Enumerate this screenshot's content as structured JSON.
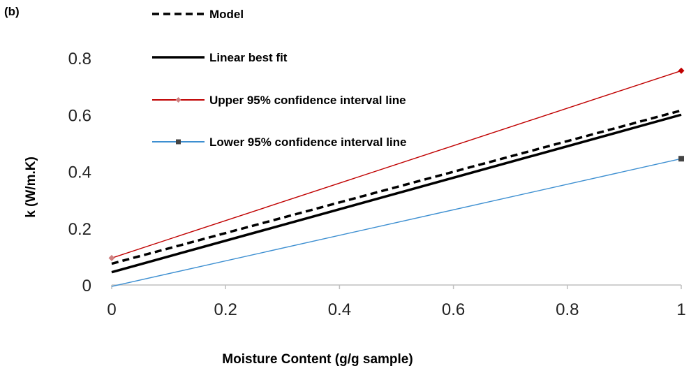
{
  "panel_label": "(b)",
  "chart_data": {
    "type": "line",
    "title": "",
    "xlabel": "Moisture Content (g/g sample)",
    "ylabel": "k (W/m.K)",
    "xlim": [
      0,
      1
    ],
    "ylim": [
      0,
      0.8
    ],
    "x_ticks": [
      "0",
      "0.2",
      "0.4",
      "0.6",
      "0.8",
      "1"
    ],
    "y_ticks": [
      "0",
      "0.2",
      "0.4",
      "0.6",
      "0.8"
    ],
    "grid": false,
    "legend_position": "top-left",
    "series": [
      {
        "name": "Model",
        "x": [
          0,
          1
        ],
        "y": [
          0.075,
          0.615
        ],
        "color": "#000000",
        "style": "dashed",
        "marker": "none"
      },
      {
        "name": "Linear best fit",
        "x": [
          0,
          1
        ],
        "y": [
          0.045,
          0.6
        ],
        "color": "#000000",
        "style": "solid",
        "marker": "none"
      },
      {
        "name": "Upper 95% confidence interval line",
        "x": [
          0,
          1
        ],
        "y": [
          0.095,
          0.755
        ],
        "color": "#c00000",
        "style": "solid",
        "marker": "diamond"
      },
      {
        "name": "Lower 95% confidence interval line",
        "x": [
          0,
          1
        ],
        "y": [
          -0.005,
          0.445
        ],
        "color": "#3d8fd1",
        "style": "solid",
        "marker": "square"
      }
    ]
  }
}
